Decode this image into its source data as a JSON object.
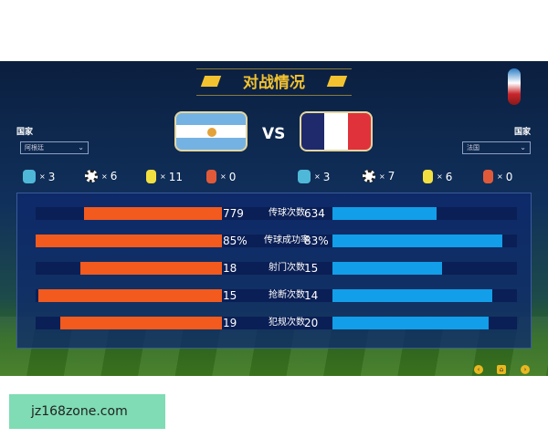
{
  "title": "对战情况",
  "vs": "VS",
  "left": {
    "label": "国家",
    "selected": "阿根廷",
    "stats": [
      {
        "icon": "gem-icon",
        "count": "3"
      },
      {
        "icon": "soccer-ball-icon",
        "count": "6"
      },
      {
        "icon": "yellow-card-icon",
        "count": "11"
      },
      {
        "icon": "red-card-icon",
        "count": "0"
      }
    ]
  },
  "right": {
    "label": "国家",
    "selected": "法国",
    "stats": [
      {
        "icon": "gem-icon",
        "count": "3"
      },
      {
        "icon": "soccer-ball-icon",
        "count": "7"
      },
      {
        "icon": "yellow-card-icon",
        "count": "6"
      },
      {
        "icon": "red-card-icon",
        "count": "0"
      }
    ]
  },
  "times": "×",
  "comparison": [
    {
      "name": "传球次数",
      "left": "779",
      "right": "634",
      "left_fill": 0.69,
      "right_fill": 0.56
    },
    {
      "name": "传球成功率",
      "left": "85%",
      "right": "83%",
      "left_fill": 0.93,
      "right_fill": 0.91
    },
    {
      "name": "射门次数",
      "left": "18",
      "right": "15",
      "left_fill": 0.71,
      "right_fill": 0.59
    },
    {
      "name": "抢断次数",
      "left": "15",
      "right": "14",
      "left_fill": 0.92,
      "right_fill": 0.86
    },
    {
      "name": "犯规次数",
      "left": "19",
      "right": "20",
      "left_fill": 0.81,
      "right_fill": 0.84
    }
  ],
  "colors": {
    "left_bar": "#f25a1e",
    "right_bar": "#129ee8",
    "title": "#f2c230"
  },
  "watermark": "jz168zone.com"
}
